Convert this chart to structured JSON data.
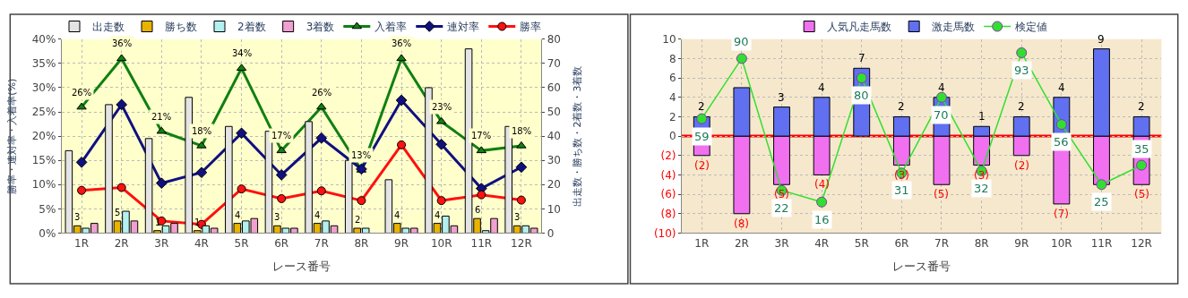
{
  "chart_data": [
    {
      "type": "bar",
      "xlabel": "レース番号",
      "ylabel": "勝率・連対率・入着率(%)",
      "y2label": "出走数・勝ち数・2着数・3着数",
      "categories": [
        "1R",
        "2R",
        "3R",
        "4R",
        "5R",
        "6R",
        "7R",
        "8R",
        "9R",
        "10R",
        "11R",
        "12R"
      ],
      "series": [
        {
          "name": "出走数",
          "color": "#e4e4e4",
          "axis": "y2",
          "values": [
            34,
            53,
            39,
            56,
            44,
            42,
            46,
            30,
            22,
            60,
            76,
            44
          ]
        },
        {
          "name": "勝ち数",
          "color": "#e8b400",
          "axis": "y2",
          "values": [
            3,
            5,
            1,
            1,
            4,
            3,
            4,
            2,
            4,
            4,
            6,
            3
          ],
          "value_labels": [
            "3",
            "5",
            "1",
            "1",
            "4",
            "3",
            "4",
            "2",
            "4",
            "4",
            "6",
            "3"
          ]
        },
        {
          "name": "2着数",
          "color": "#b4f0f0",
          "axis": "y2",
          "values": [
            2,
            9,
            3,
            3,
            5,
            2,
            5,
            2,
            2,
            7,
            1,
            3
          ]
        },
        {
          "name": "3着数",
          "color": "#f0a0d0",
          "axis": "y2",
          "values": [
            4,
            5,
            4,
            2,
            6,
            2,
            3,
            null,
            2,
            3,
            6,
            2
          ]
        },
        {
          "name": "入着率",
          "type": "line",
          "color": "#108010",
          "marker": "triangle",
          "values": [
            26,
            36,
            21,
            18,
            34,
            17,
            26,
            13,
            36,
            23,
            17,
            18
          ],
          "value_labels": [
            "26%",
            "36%",
            "21%",
            "18%",
            "34%",
            "17%",
            "26%",
            "13%",
            "36%",
            "23%",
            "17%",
            "18%"
          ]
        },
        {
          "name": "連対率",
          "type": "line",
          "color": "#101080",
          "marker": "diamond",
          "values": [
            14.6,
            26.5,
            10.3,
            12.5,
            20.6,
            12.0,
            19.6,
            13.2,
            27.4,
            18.3,
            9.2,
            13.6
          ]
        },
        {
          "name": "勝率",
          "type": "line",
          "color": "#ff1010",
          "marker": "circle",
          "values": [
            8.8,
            9.4,
            2.5,
            1.8,
            9.1,
            7.1,
            8.7,
            6.7,
            18.2,
            6.7,
            7.9,
            6.8
          ]
        }
      ],
      "ylim": [
        0,
        40
      ],
      "yticks": [
        {
          "value": 0,
          "label": "0%"
        },
        {
          "value": 5,
          "label": "5%"
        },
        {
          "value": 10,
          "label": "10%"
        },
        {
          "value": 15,
          "label": "15%"
        },
        {
          "value": 20,
          "label": "20%"
        },
        {
          "value": 25,
          "label": "25%"
        },
        {
          "value": 30,
          "label": "30%"
        },
        {
          "value": 35,
          "label": "35%"
        },
        {
          "value": 40,
          "label": "40%"
        }
      ],
      "y2lim": [
        0,
        80
      ],
      "y2ticks": [
        0,
        10,
        20,
        30,
        40,
        50,
        60,
        70,
        80
      ],
      "grid": true,
      "legend": "top"
    },
    {
      "type": "bar",
      "stacked": true,
      "xlabel": "レース番号",
      "categories": [
        "1R",
        "2R",
        "3R",
        "4R",
        "5R",
        "6R",
        "7R",
        "8R",
        "9R",
        "10R",
        "11R",
        "12R"
      ],
      "series": [
        {
          "name": "人気凡走馬数",
          "color": "#f070f0",
          "values": [
            -2,
            -8,
            -5,
            -4,
            null,
            -3,
            -5,
            -3,
            -2,
            -7,
            -5,
            -5
          ],
          "value_labels": [
            "(2)",
            "(8)",
            "(5)",
            "(4)",
            null,
            "(3)",
            "(5)",
            "(3)",
            "(2)",
            "(7)",
            null,
            "(5)"
          ]
        },
        {
          "name": "激走馬数",
          "color": "#6070f0",
          "values": [
            2,
            5,
            3,
            4,
            7,
            2,
            4,
            1,
            2,
            4,
            9,
            2
          ],
          "value_labels": [
            "2",
            null,
            "3",
            "4",
            "7",
            "2",
            "4",
            "1",
            "2",
            "4",
            "9",
            "2"
          ]
        },
        {
          "name": "検定値",
          "type": "line",
          "color": "#30e030",
          "marker": "circle",
          "axis": "y2",
          "values": [
            59,
            90,
            22,
            16,
            80,
            31,
            70,
            32,
            93,
            56,
            25,
            35
          ],
          "value_labels": [
            "59",
            "90",
            "22",
            "16",
            "80",
            "31",
            "70",
            "32",
            "93",
            "56",
            "25",
            "35"
          ]
        }
      ],
      "y2lim": [
        0,
        100
      ],
      "ylim": [
        -10,
        10
      ],
      "yticks": [
        {
          "value": -10,
          "label": "(10)"
        },
        {
          "value": -8,
          "label": "(8)"
        },
        {
          "value": -6,
          "label": "(6)"
        },
        {
          "value": -4,
          "label": "(4)"
        },
        {
          "value": -2,
          "label": "(2)"
        },
        0,
        2,
        4,
        6,
        8,
        10
      ],
      "ref_lines": [
        {
          "axis": "y",
          "value": 0,
          "color": "#ff0000"
        }
      ],
      "grid": true,
      "legend": "top"
    }
  ]
}
